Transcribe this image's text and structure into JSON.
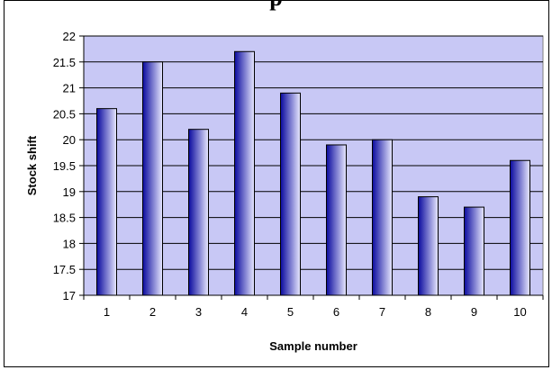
{
  "chart_data": {
    "type": "bar",
    "title": "...p...",
    "xlabel": "Sample number",
    "ylabel": "Stock shift",
    "categories": [
      "1",
      "2",
      "3",
      "4",
      "5",
      "6",
      "7",
      "8",
      "9",
      "10"
    ],
    "values": [
      20.6,
      21.5,
      20.2,
      21.7,
      20.9,
      19.9,
      20.0,
      18.9,
      18.7,
      19.6
    ],
    "ylim": [
      17,
      22
    ],
    "yticks": [
      "17",
      "17.5",
      "18",
      "18.5",
      "19",
      "19.5",
      "20",
      "20.5",
      "21",
      "21.5",
      "22"
    ],
    "grid": true,
    "legend": "none",
    "colors": {
      "plot_background": "#C8C8F5",
      "bar_dark": "#0A0A9E",
      "bar_light": "#E8E8FF",
      "gridline": "#000000"
    }
  }
}
